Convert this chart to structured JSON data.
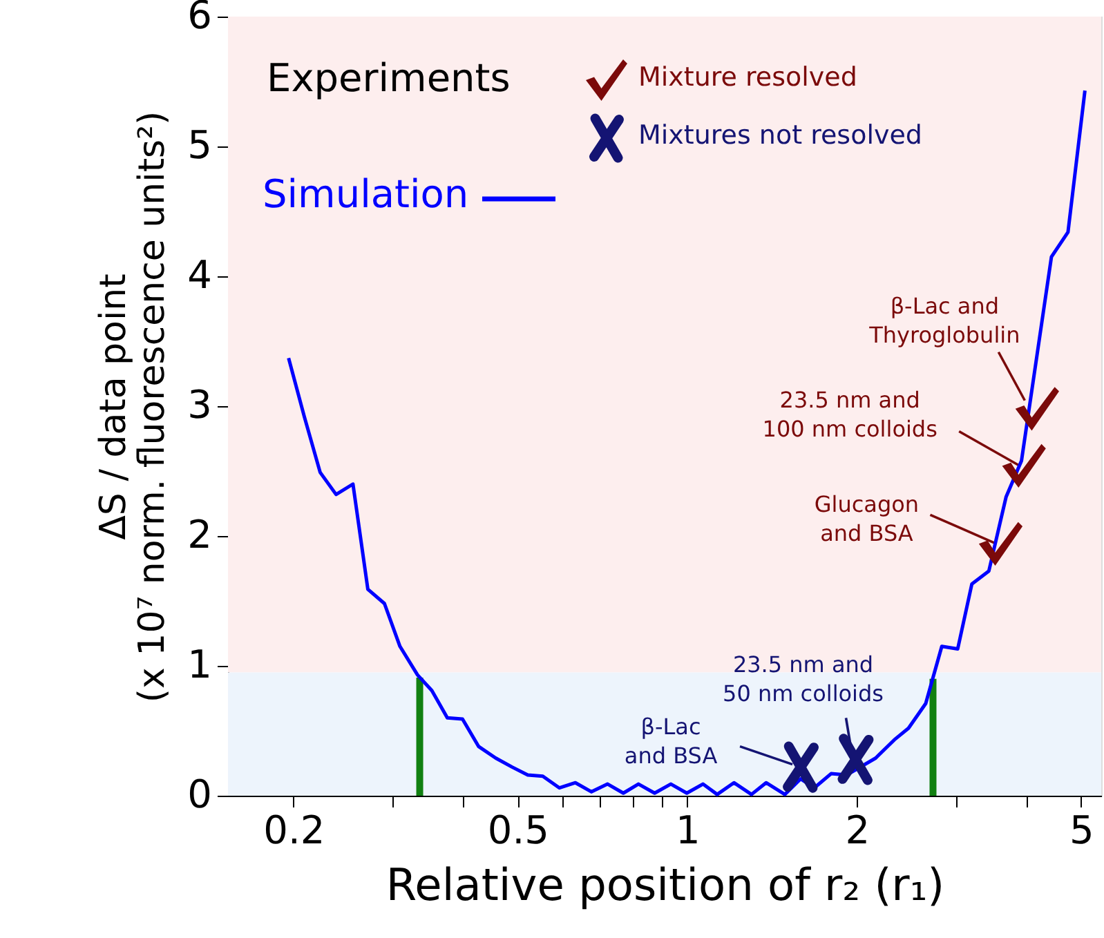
{
  "chart_data": {
    "type": "line",
    "xlabel": "Relative position of r₂ (r₁)",
    "ylabel": "ΔS / data point\n(x 10⁷ norm.  fluorescence units²)",
    "legend_title": "Experiments",
    "log": "x",
    "grid": false,
    "legend": "top",
    "xlim": [
      0.153,
      5.43
    ],
    "xticks": [
      0.2,
      {
        "value": 0.3,
        "label": null
      },
      {
        "value": 0.4,
        "label": null
      },
      0.5,
      {
        "value": 0.6,
        "label": null
      },
      {
        "value": 0.7,
        "label": null
      },
      {
        "value": 0.8,
        "label": null
      },
      {
        "value": 0.9,
        "label": null
      },
      1,
      2,
      {
        "value": 3,
        "label": null
      },
      {
        "value": 4,
        "label": null
      },
      5
    ],
    "ylim": [
      0,
      6
    ],
    "yticks": [
      0,
      1,
      2,
      3,
      4,
      5,
      6
    ],
    "bands": [
      {
        "axis": "y",
        "from": 0.95,
        "to": 6,
        "color": "#fdeeee"
      },
      {
        "axis": "y",
        "from": 0,
        "to": 0.95,
        "color": "#edf4fc"
      }
    ],
    "series": [
      {
        "name": "Mixture resolved",
        "type": "scatter",
        "color": "#7b0a0a",
        "x": [
          3.6,
          3.96,
          4.18
        ],
        "values": [
          1.94,
          2.54,
          2.98
        ]
      },
      {
        "name": "Mixtures not resolved",
        "type": "scatter",
        "marker": "cross",
        "color": "#141473",
        "x": [
          1.59,
          1.99
        ],
        "values": [
          0.22,
          0.28
        ]
      },
      {
        "name": "Simulation",
        "color": "#0000ff",
        "line_style": "solid",
        "marker": "none",
        "x": [
          0.196,
          0.209,
          0.223,
          0.238,
          0.255,
          0.271,
          0.29,
          0.309,
          0.332,
          0.352,
          0.375,
          0.399,
          0.426,
          0.457,
          0.489,
          0.521,
          0.554,
          0.593,
          0.633,
          0.676,
          0.722,
          0.77,
          0.819,
          0.875,
          0.935,
          0.998,
          1.066,
          1.13,
          1.21,
          1.3,
          1.38,
          1.49,
          1.59,
          1.68,
          1.8,
          1.92,
          2.16,
          2.33,
          2.47,
          2.65,
          2.83,
          3.02,
          3.2,
          3.43,
          3.68,
          3.92,
          4.43,
          4.74,
          5.08
        ],
        "values": [
          3.37,
          2.92,
          2.49,
          2.32,
          2.4,
          1.59,
          1.48,
          1.15,
          0.93,
          0.81,
          0.6,
          0.59,
          0.38,
          0.29,
          0.22,
          0.16,
          0.15,
          0.06,
          0.1,
          0.03,
          0.09,
          0.02,
          0.09,
          0.02,
          0.09,
          0.02,
          0.09,
          0.01,
          0.1,
          0.01,
          0.1,
          0.01,
          0.13,
          0.06,
          0.17,
          0.16,
          0.29,
          0.43,
          0.52,
          0.71,
          1.15,
          1.13,
          1.63,
          1.73,
          2.3,
          2.58,
          4.15,
          4.34,
          5.43
        ]
      },
      {
        "type": "bar",
        "color": "#118011",
        "x": [
          0.335,
          2.73
        ],
        "values": [
          0.91,
          0.9
        ]
      }
    ],
    "annotations": [
      {
        "text": "β-Lac and\nThyroglobulin",
        "x": 4.18,
        "y": 2.98
      },
      {
        "text": "23.5 nm and\n100 nm colloids",
        "x": 3.96,
        "y": 2.54
      },
      {
        "text": "Glucagon\nand BSA",
        "x": 3.6,
        "y": 1.94
      },
      {
        "text": "23.5 nm and\n50 nm colloids",
        "x": 1.99,
        "y": 0.28
      },
      {
        "text": "β-Lac\nand BSA",
        "x": 1.59,
        "y": 0.22
      }
    ]
  }
}
